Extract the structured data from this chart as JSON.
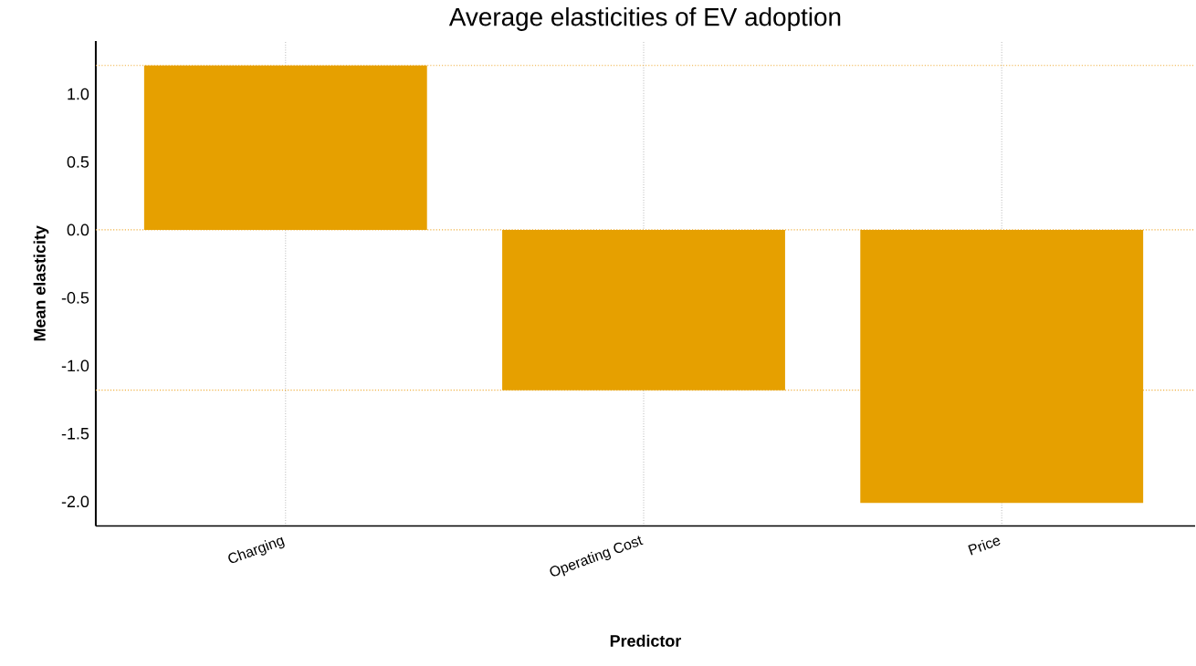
{
  "chart_data": {
    "type": "bar",
    "title": "Average elasticities of EV adoption",
    "xlabel": "Predictor",
    "ylabel": "Mean elasticity",
    "categories": [
      "Charging",
      "Operating Cost",
      "Price"
    ],
    "values": [
      1.21,
      -1.18,
      -2.01
    ],
    "color": "#e6a000",
    "ylim": [
      -2.18,
      1.39
    ],
    "yticks": [
      {
        "value": -2,
        "label": "-2.0"
      },
      {
        "value": -1.5,
        "label": "-1.5"
      },
      {
        "value": -1,
        "label": "-1.0"
      },
      -0.5,
      {
        "value": 0,
        "label": "0.0"
      },
      0.5,
      {
        "value": 1,
        "label": "1.0"
      }
    ],
    "grid": "x",
    "ref_lines": [
      {
        "axis": "y",
        "value": 1.21,
        "color": "#f0b040",
        "line_style": "dotted"
      },
      {
        "axis": "y",
        "value": 0,
        "color": "#f0b040",
        "line_style": "dotted"
      },
      {
        "axis": "y",
        "value": -1.18,
        "color": "#f0b040",
        "line_style": "dotted"
      }
    ]
  }
}
